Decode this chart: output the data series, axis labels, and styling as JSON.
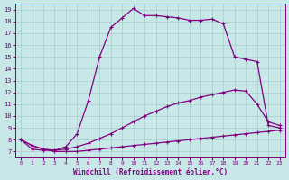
{
  "xlabel": "Windchill (Refroidissement éolien,°C)",
  "background_color": "#c8e8e8",
  "line_color": "#800080",
  "grid_color": "#a8cccc",
  "xlim": [
    -0.5,
    23.5
  ],
  "ylim": [
    6.5,
    19.5
  ],
  "xticks": [
    0,
    1,
    2,
    3,
    4,
    5,
    6,
    7,
    8,
    9,
    10,
    11,
    12,
    13,
    14,
    15,
    16,
    17,
    18,
    19,
    20,
    21,
    22,
    23
  ],
  "yticks": [
    7,
    8,
    9,
    10,
    11,
    12,
    13,
    14,
    15,
    16,
    17,
    18,
    19
  ],
  "line1_x": [
    0,
    1,
    2,
    3,
    4,
    5,
    6,
    7,
    8,
    9,
    10,
    11,
    12,
    13,
    14,
    15,
    16,
    17,
    18,
    19,
    20,
    21,
    22,
    23
  ],
  "line1_y": [
    8.0,
    7.5,
    7.2,
    7.0,
    7.0,
    7.0,
    7.1,
    7.2,
    7.3,
    7.4,
    7.5,
    7.6,
    7.7,
    7.8,
    7.9,
    8.0,
    8.1,
    8.2,
    8.3,
    8.4,
    8.5,
    8.6,
    8.7,
    8.8
  ],
  "line2_x": [
    0,
    1,
    2,
    3,
    4,
    5,
    6,
    7,
    8,
    9,
    10,
    11,
    12,
    13,
    14,
    15,
    16,
    17,
    18,
    19,
    20,
    21,
    22,
    23
  ],
  "line2_y": [
    8.0,
    7.5,
    7.2,
    7.1,
    7.2,
    7.4,
    7.7,
    8.1,
    8.5,
    9.0,
    9.5,
    10.0,
    10.4,
    10.8,
    11.1,
    11.3,
    11.6,
    11.8,
    12.0,
    12.2,
    12.1,
    11.0,
    9.5,
    9.2
  ],
  "line3_x": [
    0,
    1,
    2,
    3,
    4,
    5,
    6,
    7,
    8,
    9,
    10,
    11,
    12,
    13,
    14,
    15,
    16,
    17,
    18,
    19,
    20,
    21,
    22,
    23
  ],
  "line3_y": [
    8.0,
    7.2,
    7.1,
    7.1,
    7.4,
    8.5,
    11.3,
    15.0,
    17.5,
    18.3,
    19.1,
    18.5,
    18.5,
    18.4,
    18.3,
    18.1,
    18.1,
    18.2,
    17.8,
    15.0,
    14.8,
    14.6,
    9.2,
    9.0
  ],
  "marker": "+",
  "markersize": 3,
  "linewidth": 0.9
}
